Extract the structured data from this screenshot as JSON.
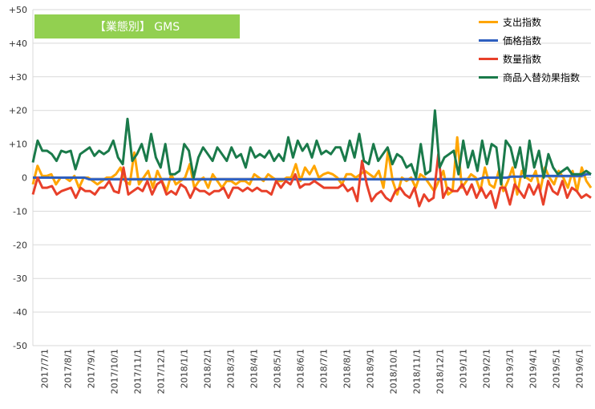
{
  "chart_data": {
    "type": "line",
    "title": "【業態別】 GMS",
    "ylim": [
      -50,
      50
    ],
    "y_ticks": [
      "+50",
      "+40",
      "+30",
      "+20",
      "+10",
      "0",
      "-10",
      "-20",
      "-30",
      "-40",
      "-50"
    ],
    "x_tick_labels": [
      "2017/7/1",
      "2017/8/1",
      "2017/9/1",
      "2017/10/1",
      "2017/11/1",
      "2017/12/1",
      "2018/1/1",
      "2018/2/1",
      "2018/3/1",
      "2018/4/1",
      "2018/5/1",
      "2018/6/1",
      "2018/7/1",
      "2018/8/1",
      "2018/9/1",
      "2018/10/1",
      "2018/11/1",
      "2018/12/1",
      "2019/1/1",
      "2019/2/1",
      "2019/3/1",
      "2019/4/1",
      "2019/5/1",
      "2019/6/1"
    ],
    "grid": true,
    "legend_position": "top-right",
    "series": [
      {
        "name": "支出指数",
        "color": "#ffa500",
        "values": [
          -2,
          3.5,
          0.5,
          0.5,
          1,
          -2,
          0,
          0,
          -1,
          0.5,
          -3,
          0,
          0,
          -1,
          -2,
          -1,
          0,
          0,
          1,
          3,
          -1,
          -2,
          7.5,
          -2,
          0,
          2,
          -3,
          2,
          -1,
          -4,
          1,
          -2,
          -1,
          0,
          4,
          -3,
          -1,
          0,
          -3,
          1,
          -1,
          -3,
          -1,
          -1,
          -2,
          -1,
          -1,
          -2,
          1,
          0,
          -1,
          1,
          0,
          -1,
          -1,
          0,
          0,
          4,
          -1,
          3,
          1,
          3.5,
          0,
          1,
          1.5,
          1,
          0,
          -2,
          1,
          1,
          0,
          1,
          2,
          1,
          0,
          2,
          -3,
          8,
          -1,
          -5,
          0,
          -1,
          0,
          -3,
          1,
          0,
          -2,
          -4,
          -1,
          2,
          -5,
          -4,
          12,
          -3,
          -1,
          1,
          0,
          -4,
          3,
          -2,
          -3,
          2,
          -4,
          -1,
          3,
          -5,
          2,
          0,
          -1,
          2,
          -4,
          3,
          0,
          -2,
          2,
          0,
          -3,
          2,
          -4,
          3,
          -1,
          -3
        ]
      },
      {
        "name": "価格指数",
        "color": "#2e5fbf",
        "values": [
          0,
          0,
          0,
          0,
          0,
          0,
          0,
          0,
          0,
          0,
          0,
          0,
          -0.5,
          -0.5,
          -0.5,
          -0.5,
          -0.5,
          -0.5,
          -0.5,
          -0.5,
          -0.5,
          -0.5,
          -0.5,
          -0.5,
          -0.5,
          -0.5,
          -0.5,
          -0.5,
          -0.5,
          -0.5,
          -0.5,
          -0.5,
          -0.5,
          -0.5,
          -0.5,
          -0.5,
          -0.5,
          -0.5,
          -0.5,
          -0.5,
          -0.5,
          -0.5,
          -0.5,
          -0.5,
          -0.5,
          -0.5,
          -0.5,
          -0.5,
          -0.5,
          -0.5,
          -0.5,
          -0.5,
          -0.5,
          -0.5,
          -0.5,
          -0.5,
          -0.5,
          -0.5,
          -0.5,
          -0.5,
          -0.5,
          -0.5,
          -0.5,
          -0.5,
          -0.5,
          -0.5,
          -0.5,
          -0.5,
          -0.5,
          -0.5,
          -0.5,
          -0.5,
          -0.5,
          -0.5,
          -0.5,
          -0.5,
          -0.5,
          -0.5,
          -0.5,
          -0.5,
          -0.5,
          -0.5,
          -0.5,
          -0.5,
          -0.5,
          -0.5,
          -0.5,
          -0.5,
          -0.5,
          -0.5,
          -0.5,
          -0.5,
          -0.5,
          -0.5,
          -0.5,
          -0.5,
          0,
          0,
          0,
          0,
          0,
          0,
          0.3,
          0.3,
          0.3,
          0.5,
          0.5,
          0.5,
          0.5,
          0.5,
          0.5,
          0.5,
          0.5,
          0.5,
          0.5,
          0.5,
          0.5,
          0.5,
          1,
          1
        ]
      },
      {
        "name": "数量指数",
        "color": "#e8402a",
        "values": [
          -5,
          0,
          -3,
          -3,
          -2.5,
          -5,
          -4,
          -3.5,
          -3,
          -6,
          -3,
          -4,
          -4,
          -5,
          -3,
          -3,
          -1,
          -4,
          -4.5,
          3,
          -5,
          -4,
          -3,
          -4,
          -1,
          -5,
          -2,
          -1,
          -5,
          -4,
          -5,
          -2,
          -3,
          -6,
          -3,
          -4,
          -4,
          -5,
          -4,
          -4,
          -3,
          -6,
          -3,
          -3,
          -4,
          -3,
          -4,
          -3,
          -4,
          -4,
          -5,
          -1,
          -3,
          -1,
          -2,
          1,
          -3,
          -2,
          -2,
          -1,
          -2,
          -3,
          -3,
          -3,
          -3,
          -2,
          -4,
          -3,
          -7,
          5,
          -2,
          -7,
          -5,
          -4,
          -6,
          -7,
          -4,
          -3,
          -5,
          -6,
          -3,
          -8.5,
          -5,
          -7,
          -6,
          7,
          -6,
          -3,
          -4,
          -4,
          -2,
          -5,
          -2,
          -6,
          -3,
          -6,
          -4,
          -9,
          -3,
          -3,
          -8,
          -2,
          -4,
          -6,
          -2,
          -5,
          -2,
          -8,
          -1,
          -4,
          -5,
          -1,
          -6,
          -3,
          -4,
          -6,
          -5,
          -6
        ]
      },
      {
        "name": "商品入替効果指数",
        "color": "#1a7a4a",
        "values": [
          4.5,
          11,
          8,
          8,
          7,
          5,
          8,
          7.5,
          8,
          2.5,
          7,
          8,
          9,
          6.5,
          8,
          7,
          8,
          11,
          6,
          4,
          17.5,
          5,
          7,
          10,
          5,
          13,
          6,
          3,
          10,
          1,
          1,
          2,
          10,
          8,
          0,
          6,
          9,
          7,
          5,
          9,
          7,
          5,
          9,
          6,
          7,
          3,
          9,
          6,
          7,
          6,
          8,
          5,
          7,
          5,
          12,
          6,
          11,
          8,
          10,
          6,
          11,
          7,
          8,
          7,
          9,
          9,
          5,
          11,
          6,
          13,
          5,
          4,
          10,
          5,
          7,
          9,
          4,
          7,
          6,
          3,
          4,
          0,
          10,
          1,
          2,
          20,
          3,
          6,
          7,
          8,
          1,
          11,
          3,
          8,
          2,
          11,
          4,
          10,
          9,
          -2,
          11,
          9,
          3,
          9,
          0,
          11,
          3,
          8,
          0,
          7,
          3,
          1,
          2,
          3,
          1,
          1,
          1,
          2,
          1
        ]
      }
    ]
  }
}
